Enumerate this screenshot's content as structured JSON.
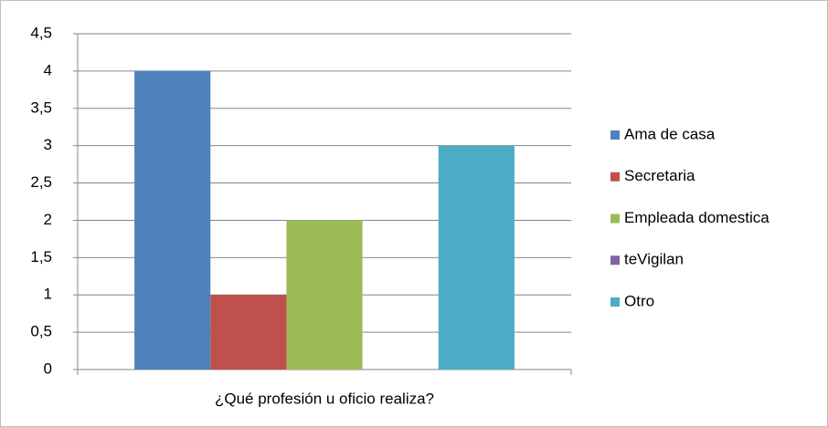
{
  "chart_data": {
    "type": "bar",
    "categories": [
      "¿Qué profesión u oficio realiza?"
    ],
    "series": [
      {
        "name": "Ama de casa",
        "color": "#4f81bd",
        "values": [
          4
        ]
      },
      {
        "name": "Secretaria",
        "color": "#c0504d",
        "values": [
          1
        ]
      },
      {
        "name": "Empleada domestica",
        "color": "#9bbb59",
        "values": [
          2
        ]
      },
      {
        "name": "teVigilan",
        "color": "#8064a2",
        "values": [
          0
        ]
      },
      {
        "name": "Otro",
        "color": "#4bacc6",
        "values": [
          3
        ]
      }
    ],
    "ylim": [
      0,
      4.5
    ],
    "yticks": [
      0,
      {
        "value": 0.5,
        "label": "0,5"
      },
      1,
      {
        "value": 1.5,
        "label": "1,5"
      },
      2,
      {
        "value": 2.5,
        "label": "2,5"
      },
      3,
      {
        "value": 3.5,
        "label": "3,5"
      },
      4,
      {
        "value": 4.5,
        "label": "4,5"
      }
    ],
    "grid": true,
    "legend": "right"
  }
}
